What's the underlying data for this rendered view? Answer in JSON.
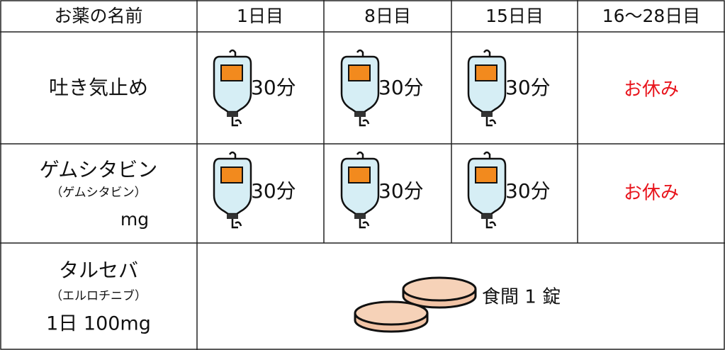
{
  "header": [
    "お薬の名前",
    "1日目",
    "8日目",
    "15日目",
    "16～28日目"
  ],
  "rows": [
    {
      "name": [
        "吐き気止め"
      ],
      "cells": [
        "30分",
        "30分",
        "30分",
        "お休み"
      ]
    },
    {
      "name": [
        "ゲムシタビン",
        "（ゲムシタビン）",
        "mg"
      ],
      "cells": [
        "30分",
        "30分",
        "30分",
        "お休み"
      ]
    },
    {
      "name": [
        "タルセバ",
        "（エルロチニブ）",
        "1日 100mg"
      ],
      "cells": [
        "食間 1 錠"
      ]
    }
  ]
}
